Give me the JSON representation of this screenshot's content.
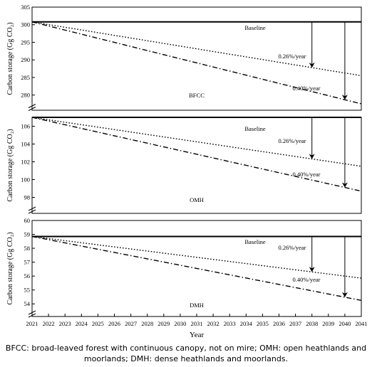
{
  "chart_data": [
    {
      "type": "line",
      "ylabel": "Carbon storage (Gg CO₂)",
      "ylim": [
        277.5,
        305
      ],
      "yticks": [
        280,
        285,
        290,
        295,
        300,
        305
      ],
      "xlim": [
        2021,
        2041
      ],
      "annotation": "BFCC",
      "series": [
        {
          "name": "Baseline",
          "style": "solid",
          "x": [
            2021,
            2041
          ],
          "y": [
            300.8,
            300.8
          ]
        },
        {
          "name": "0.26%/year",
          "style": "dotted",
          "x": [
            2021,
            2041
          ],
          "y": [
            300.8,
            285.5
          ]
        },
        {
          "name": "0.40%/year",
          "style": "dashdot",
          "x": [
            2021,
            2041
          ],
          "y": [
            300.8,
            277.5
          ]
        }
      ]
    },
    {
      "type": "line",
      "ylabel": "Carbon storage (Gg CO₂)",
      "ylim": [
        97,
        107
      ],
      "yticks": [
        98,
        100,
        102,
        104,
        106
      ],
      "xlim": [
        2021,
        2041
      ],
      "annotation": "OMH",
      "series": [
        {
          "name": "Baseline",
          "style": "solid",
          "x": [
            2021,
            2041
          ],
          "y": [
            107.0,
            107.0
          ]
        },
        {
          "name": "0.26%/year",
          "style": "dotted",
          "x": [
            2021,
            2041
          ],
          "y": [
            107.0,
            101.5
          ]
        },
        {
          "name": "0.40%/year",
          "style": "dashdot",
          "x": [
            2021,
            2041
          ],
          "y": [
            107.0,
            98.7
          ]
        }
      ]
    },
    {
      "type": "line",
      "ylabel": "Carbon storage (Gg CO₂)",
      "ylim": [
        53.5,
        60
      ],
      "yticks": [
        54,
        55,
        56,
        57,
        58,
        59,
        60
      ],
      "xlim": [
        2021,
        2041
      ],
      "annotation": "DMH",
      "series": [
        {
          "name": "Baseline",
          "style": "solid",
          "x": [
            2021,
            2041
          ],
          "y": [
            58.85,
            58.85
          ]
        },
        {
          "name": "0.26%/year",
          "style": "dotted",
          "x": [
            2021,
            2041
          ],
          "y": [
            58.85,
            55.85
          ]
        },
        {
          "name": "0.40%/year",
          "style": "dashdot",
          "x": [
            2021,
            2041
          ],
          "y": [
            58.85,
            54.25
          ]
        }
      ]
    }
  ],
  "labels": {
    "baseline": "Baseline",
    "rate_low": "0.26%/year",
    "rate_high": "0.40%/year"
  },
  "arrow_years": [
    2038,
    2040
  ],
  "xticks": [
    2021,
    2022,
    2023,
    2024,
    2025,
    2026,
    2027,
    2028,
    2029,
    2030,
    2031,
    2032,
    2033,
    2034,
    2035,
    2036,
    2037,
    2038,
    2039,
    2040,
    2041
  ],
  "xlabel": "Year",
  "caption": "BFCC: broad-leaved forest with continuous canopy, not on mire; OMH: open heathlands and moorlands; DMH: dense heathlands and moorlands."
}
